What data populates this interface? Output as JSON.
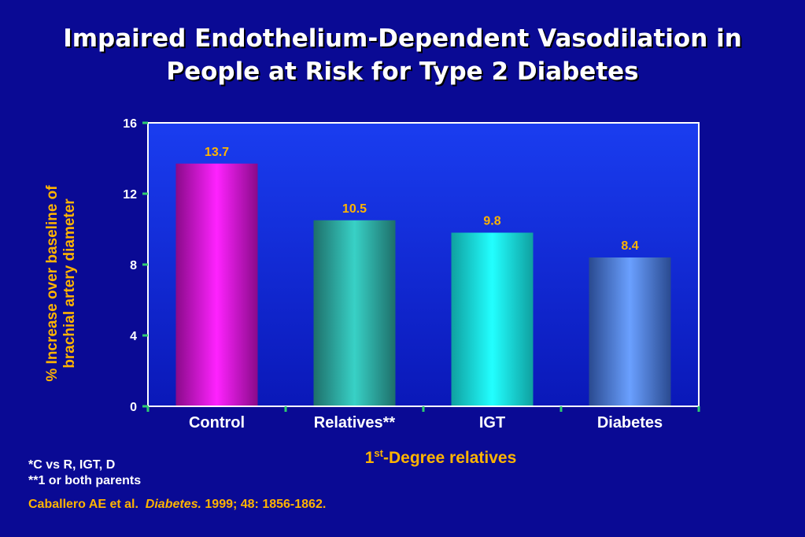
{
  "title": {
    "line1": "Impaired Endothelium-Dependent Vasodilation in",
    "line2": "People at Risk for Type 2 Diabetes"
  },
  "chart_data": {
    "type": "bar",
    "categories": [
      "Control",
      "Relatives**",
      "IGT",
      "Diabetes"
    ],
    "values": [
      13.7,
      10.5,
      9.8,
      8.4
    ],
    "data_labels": [
      "13.7",
      "10.5",
      "9.8",
      "8.4"
    ],
    "ylabel_line1": "% Increase over baseline of",
    "ylabel_line2": "brachial artery diameter",
    "xlabel_main": "1",
    "xlabel_sup": "st",
    "xlabel_rest": "-Degree relatives",
    "ylim": [
      0,
      16
    ],
    "yticks": [
      "0",
      "4",
      "8",
      "12",
      "16"
    ],
    "ytick_values": [
      0,
      4,
      8,
      12,
      16
    ],
    "grid": false,
    "colors": {
      "plot_background_top": "#1a3df0",
      "plot_background_bottom": "#0a18b8",
      "axis": "#ffffff",
      "tick_mark": "#2ecc71",
      "data_label": "#ffb400",
      "bar_edges": [
        "#8a0a8a",
        "#1e6f6a",
        "#0fa0a0",
        "#2a4a90"
      ],
      "bar_centers": [
        "#ff22ff",
        "#38d1c6",
        "#22ffff",
        "#6aa0ff"
      ]
    }
  },
  "notes": {
    "line1": "*C vs R, IGT, D",
    "line2": "**1 or both parents"
  },
  "citation": {
    "authors": "Caballero AE et al.",
    "journal": "Diabetes.",
    "details": "1999; 48: 1856-1862."
  }
}
